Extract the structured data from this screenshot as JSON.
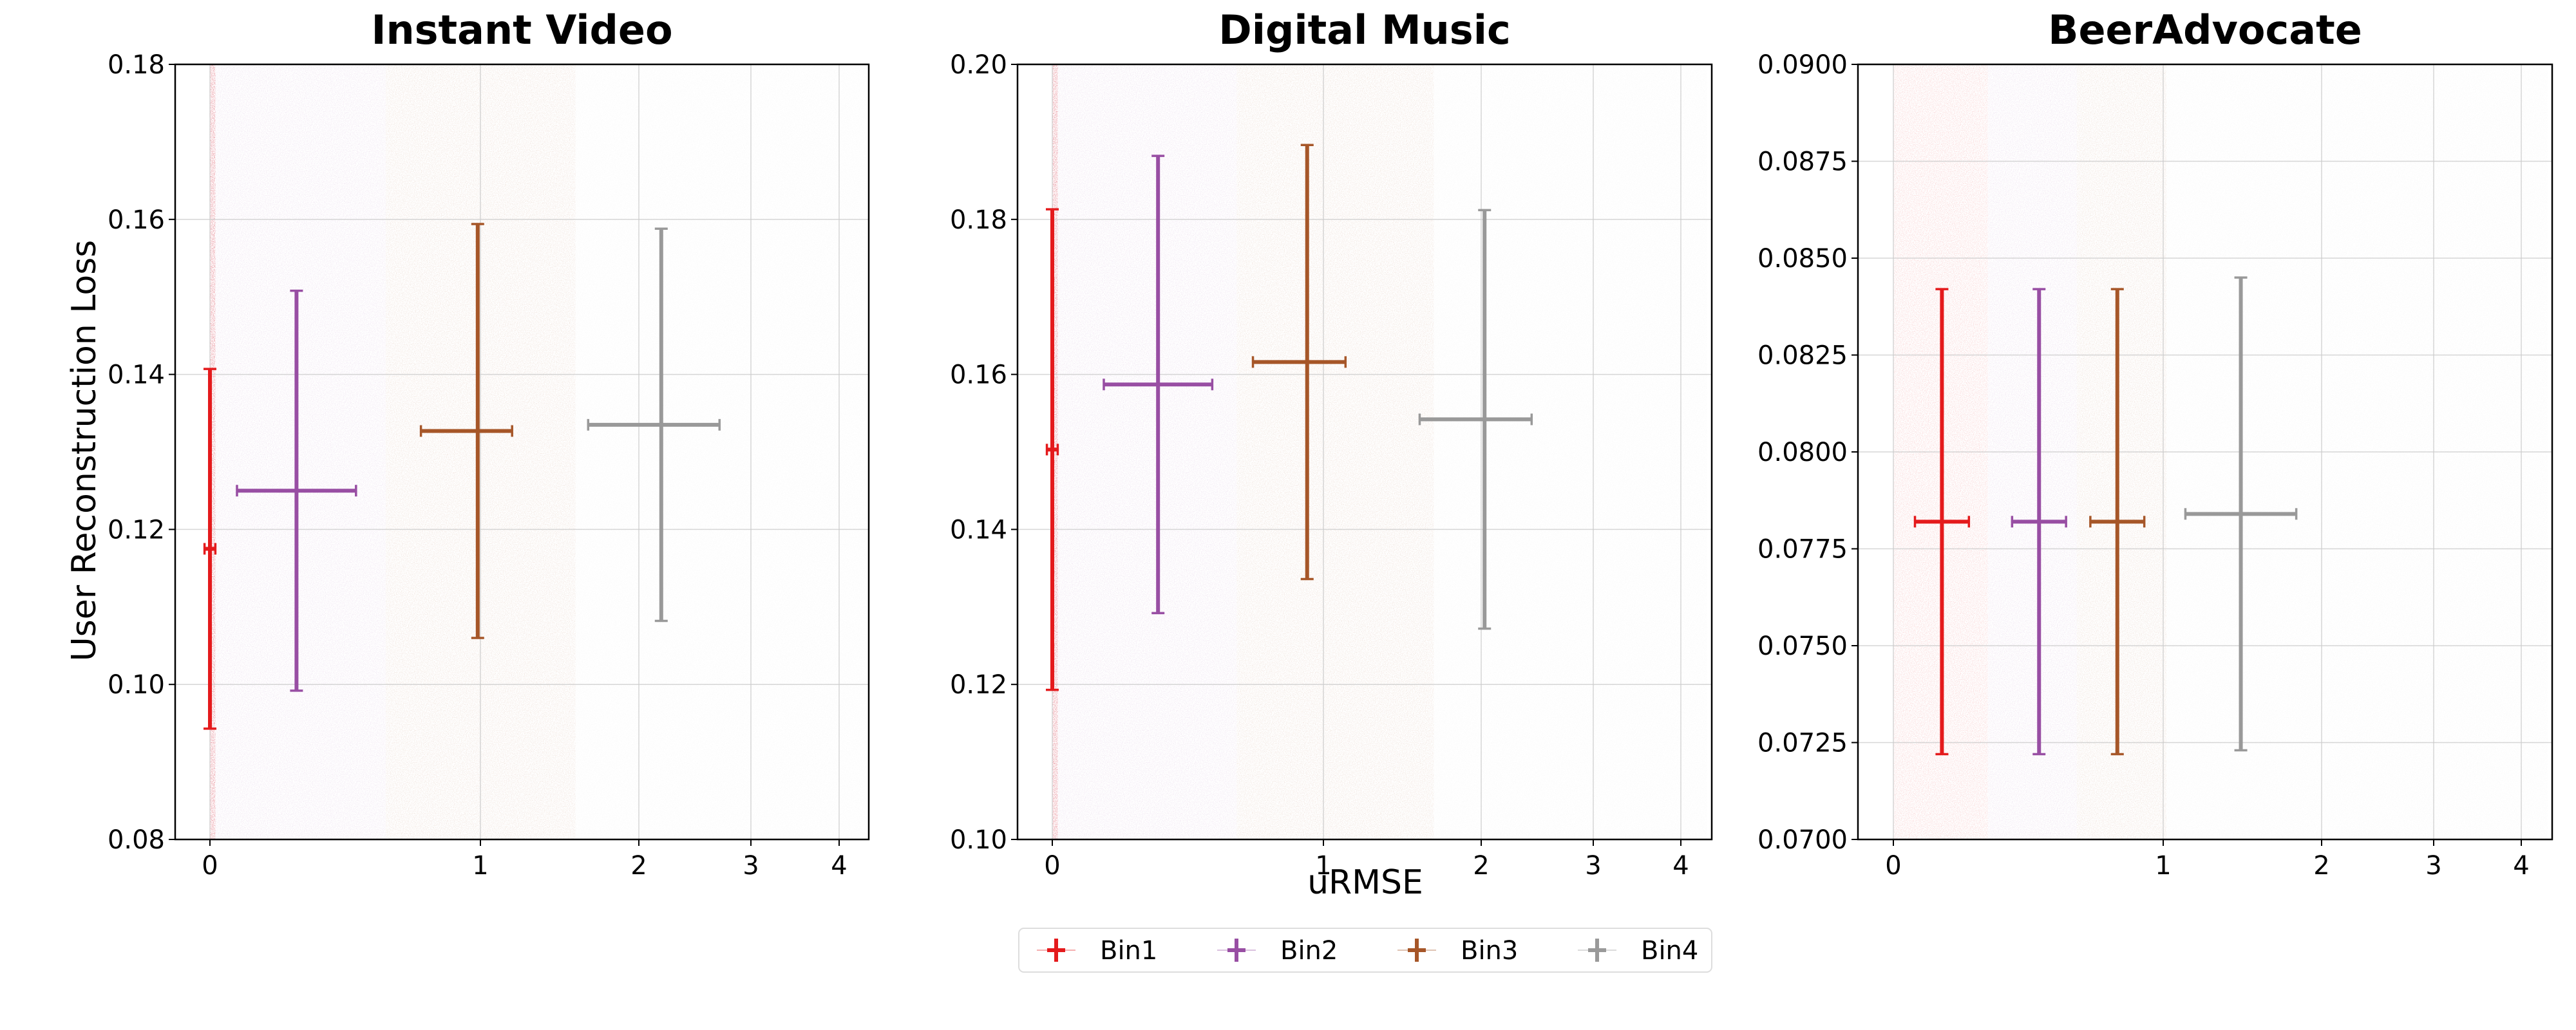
{
  "figure": {
    "ylabel": "User Reconstruction Loss",
    "xlabel": "uRMSE"
  },
  "legend": {
    "placement": "bottom-center",
    "items": [
      {
        "label": "Bin1",
        "color": "#e41a1c"
      },
      {
        "label": "Bin2",
        "color": "#984ea3"
      },
      {
        "label": "Bin3",
        "color": "#a65628"
      },
      {
        "label": "Bin4",
        "color": "#999999"
      }
    ]
  },
  "chart_data": [
    {
      "type": "scatter",
      "title": "Instant Video",
      "x_scale": "piecewise",
      "x_ticks": [
        "0",
        "1",
        "2",
        "3",
        "4"
      ],
      "y_ticks": [
        "0.08",
        "0.10",
        "0.12",
        "0.14",
        "0.16",
        "0.18"
      ],
      "ylim": [
        0.08,
        0.18
      ],
      "grid": true,
      "series": [
        {
          "name": "Bin1",
          "x": 0.0,
          "x_err": 0.02,
          "y": 0.1175,
          "y_err": 0.0232
        },
        {
          "name": "Bin2",
          "x": 0.32,
          "x_err": 0.22,
          "y": 0.125,
          "y_err": 0.0258
        },
        {
          "name": "Bin3",
          "x": 0.99,
          "x_err": 0.21,
          "y": 0.1327,
          "y_err": 0.0267
        },
        {
          "name": "Bin4",
          "x": 2.2,
          "x_err": 0.52,
          "y": 0.1335,
          "y_err": 0.0253
        }
      ]
    },
    {
      "type": "scatter",
      "title": "Digital Music",
      "x_scale": "piecewise",
      "x_ticks": [
        "0",
        "1",
        "2",
        "3",
        "4"
      ],
      "y_ticks": [
        "0.10",
        "0.12",
        "0.14",
        "0.16",
        "0.18",
        "0.20"
      ],
      "ylim": [
        0.1,
        0.2
      ],
      "grid": true,
      "series": [
        {
          "name": "Bin1",
          "x": 0.0,
          "x_err": 0.02,
          "y": 0.1503,
          "y_err": 0.031
        },
        {
          "name": "Bin2",
          "x": 0.39,
          "x_err": 0.2,
          "y": 0.1587,
          "y_err": 0.0295
        },
        {
          "name": "Bin3",
          "x": 0.94,
          "x_err": 0.2,
          "y": 0.1616,
          "y_err": 0.028
        },
        {
          "name": "Bin4",
          "x": 2.03,
          "x_err": 0.42,
          "y": 0.1542,
          "y_err": 0.027
        }
      ]
    },
    {
      "type": "scatter",
      "title": "BeerAdvocate",
      "x_scale": "piecewise",
      "x_ticks": [
        "0",
        "1",
        "2",
        "3",
        "4"
      ],
      "y_ticks": [
        "0.0700",
        "0.0725",
        "0.0750",
        "0.0775",
        "0.0800",
        "0.0825",
        "0.0850",
        "0.0875",
        "0.0900"
      ],
      "ylim": [
        0.07,
        0.09
      ],
      "grid": true,
      "series": [
        {
          "name": "Bin1",
          "x": 0.18,
          "x_err": 0.1,
          "y": 0.0782,
          "y_err": 0.006
        },
        {
          "name": "Bin2",
          "x": 0.54,
          "x_err": 0.1,
          "y": 0.0782,
          "y_err": 0.006
        },
        {
          "name": "Bin3",
          "x": 0.83,
          "x_err": 0.1,
          "y": 0.0782,
          "y_err": 0.006
        },
        {
          "name": "Bin4",
          "x": 1.49,
          "x_err": 0.35,
          "y": 0.0784,
          "y_err": 0.0061
        }
      ]
    }
  ]
}
